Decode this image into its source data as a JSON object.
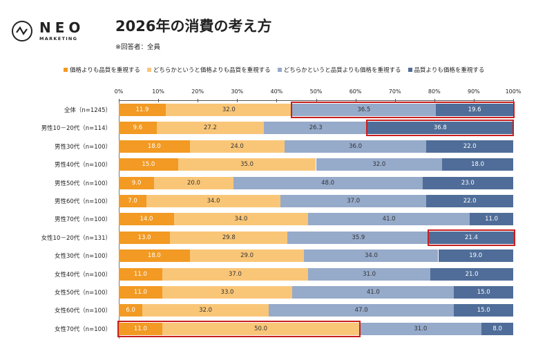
{
  "logo": {
    "name": "NEO",
    "sub": "MARKETING"
  },
  "title": "2026年の消費の考え方",
  "subtitle": "※回答者：全員",
  "chart_data": {
    "type": "bar",
    "orientation": "horizontal-stacked-100",
    "title": "2026年の消費の考え方",
    "xlim": [
      0,
      100
    ],
    "x_ticks": [
      "0%",
      "10%",
      "20%",
      "30%",
      "40%",
      "50%",
      "60%",
      "70%",
      "80%",
      "90%",
      "100%"
    ],
    "legend_position": "top",
    "categories": [
      "全体（n=1245）",
      "男性10－20代（n=114）",
      "男性30代（n=100）",
      "男性40代（n=100）",
      "男性50代（n=100）",
      "男性60代（n=100）",
      "男性70代（n=100）",
      "女性10－20代（n=131）",
      "女性30代（n=100）",
      "女性40代（n=100）",
      "女性50代（n=100）",
      "女性60代（n=100）",
      "女性70代（n=100）"
    ],
    "series": [
      {
        "name": "価格よりも品質を重視する",
        "color": "#F29A23",
        "values": [
          11.9,
          9.6,
          18.0,
          15.0,
          9.0,
          7.0,
          14.0,
          13.0,
          18.0,
          11.0,
          11.0,
          6.0,
          11.0
        ]
      },
      {
        "name": "どちらかというと価格よりも品質を重視する",
        "color": "#F9C678",
        "values": [
          32.0,
          27.2,
          24.0,
          35.0,
          20.0,
          34.0,
          34.0,
          29.8,
          29.0,
          37.0,
          33.0,
          32.0,
          50.0
        ]
      },
      {
        "name": "どちらかというと品質よりも価格を重視する",
        "color": "#96AACA",
        "values": [
          36.5,
          26.3,
          36.0,
          32.0,
          48.0,
          37.0,
          41.0,
          35.9,
          34.0,
          31.0,
          41.0,
          47.0,
          31.0
        ]
      },
      {
        "name": "品質よりも価格を重視する",
        "color": "#4F6D98",
        "values": [
          19.6,
          36.8,
          22.0,
          18.0,
          23.0,
          22.0,
          11.0,
          21.4,
          19.0,
          21.0,
          15.0,
          15.0,
          8.0
        ]
      }
    ],
    "highlights": [
      {
        "row": 0,
        "series": [
          2,
          3
        ]
      },
      {
        "row": 1,
        "series": [
          3
        ]
      },
      {
        "row": 7,
        "series": [
          3
        ]
      },
      {
        "row": 12,
        "series": [
          0,
          1
        ]
      }
    ],
    "highlight_color": "#C81E1E"
  }
}
